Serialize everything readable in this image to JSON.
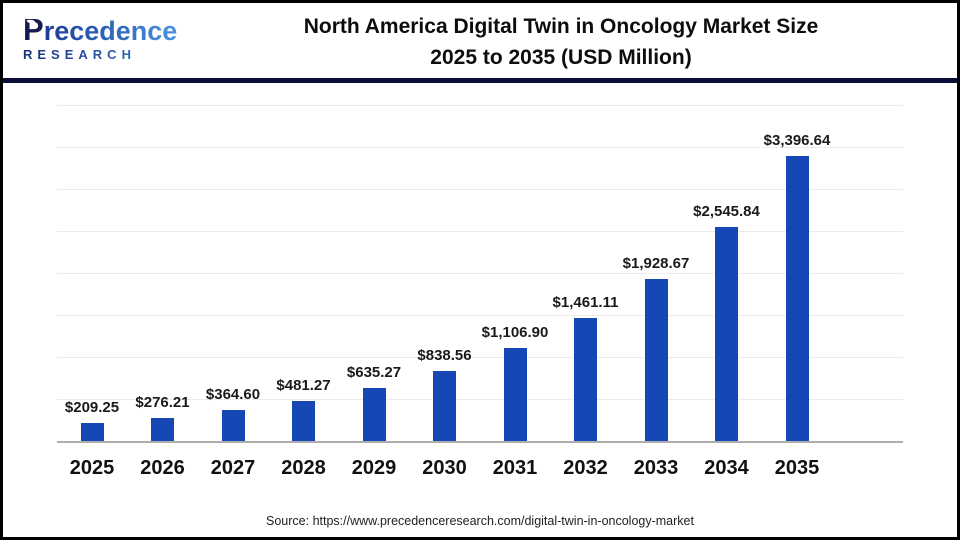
{
  "logo": {
    "initial": "P",
    "rest": "recedence",
    "sub": "RESEARCH"
  },
  "title": {
    "line1": "North America Digital Twin in Oncology Market Size",
    "line2": "2025 to 2035 (USD Million)"
  },
  "chart_data": {
    "type": "bar",
    "title": "North America Digital Twin in Oncology Market Size 2025 to 2035 (USD Million)",
    "categories": [
      "2025",
      "2026",
      "2027",
      "2028",
      "2029",
      "2030",
      "2031",
      "2032",
      "2033",
      "2034",
      "2035"
    ],
    "values": [
      209.25,
      276.21,
      364.6,
      481.27,
      635.27,
      838.56,
      1106.9,
      1461.11,
      1928.67,
      2545.84,
      3396.64
    ],
    "labels": [
      "$209.25",
      "$276.21",
      "$364.60",
      "$481.27",
      "$635.27",
      "$838.56",
      "$1,106.90",
      "$1,461.11",
      "$1,928.67",
      "$2,545.84",
      "$3,396.64"
    ],
    "xlabel": "",
    "ylabel": "",
    "ylim": [
      0,
      4000
    ],
    "gridline_interval": 500,
    "grid": true,
    "legend": false,
    "bar_color": "#1747b5",
    "value_prefix": "$",
    "unit": "USD Million"
  },
  "source": {
    "text": "Source: https://www.precedenceresearch.com/digital-twin-in-oncology-market"
  },
  "colors": {
    "bar": "#1747b5",
    "separator": "#0c0c38",
    "baseline": "#aeaeae",
    "gridline": "#ececec",
    "title_text": "#0d0d0d",
    "logo_dark": "#181b4f",
    "logo_light": "#4a93de"
  }
}
